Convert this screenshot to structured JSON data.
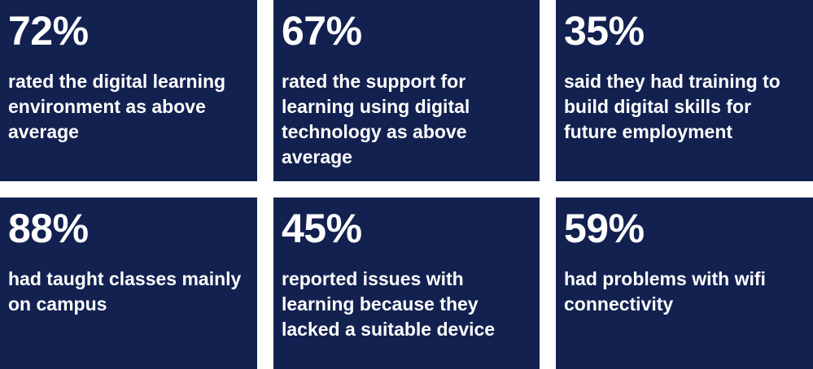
{
  "stats": [
    {
      "value": "72%",
      "text": "rated the digital learning environment as above average"
    },
    {
      "value": "67%",
      "text": "rated the support for learning using digital technology as above average"
    },
    {
      "value": "35%",
      "text": "said they had training to build digital skills for future employment"
    },
    {
      "value": "88%",
      "text": "had taught classes mainly on campus"
    },
    {
      "value": "45%",
      "text": "reported issues with learning because they lacked a suitable device"
    },
    {
      "value": "59%",
      "text": "had problems with wifi connectivity"
    }
  ],
  "colors": {
    "tile_background": "#122150",
    "text": "#ffffff",
    "page_background": "#ffffff"
  }
}
